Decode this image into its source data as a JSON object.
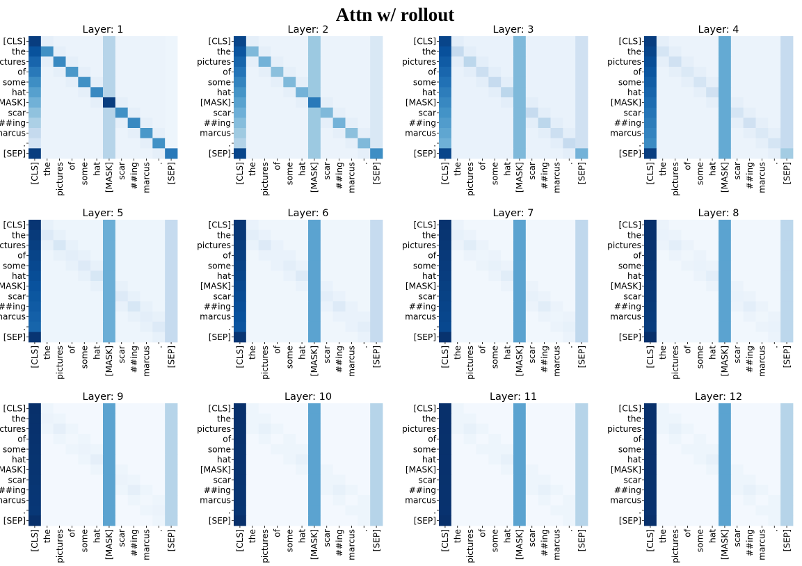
{
  "title": "Attn w/ rollout",
  "chart_data": {
    "type": "heatmap",
    "title": "Attn w/ rollout",
    "colormap": "Blues",
    "value_range": [
      0,
      1
    ],
    "tokens": [
      "[CLS]",
      "the",
      "pictures",
      "of",
      "some",
      "hat",
      "[MASK]",
      "scar",
      "##ing",
      "marcus",
      ".",
      "[SEP]"
    ],
    "panels": [
      {
        "title": "Layer: 1",
        "pattern": {
          "cls": [
            0.95,
            0.1
          ],
          "mask": 0.3,
          "sep": 0.05,
          "diag": [
            0.9,
            0.6,
            0.95
          ],
          "other": 0.06
        }
      },
      {
        "title": "Layer: 2",
        "pattern": {
          "cls": [
            0.92,
            0.25
          ],
          "mask": 0.38,
          "sep": 0.15,
          "diag": [
            0.8,
            0.42,
            0.72
          ],
          "other": 0.06
        }
      },
      {
        "title": "Layer: 3",
        "pattern": {
          "cls": [
            0.92,
            0.45
          ],
          "mask": 0.45,
          "sep": 0.2,
          "diag": [
            0.6,
            0.22,
            0.45
          ],
          "other": 0.07
        }
      },
      {
        "title": "Layer: 4",
        "pattern": {
          "cls": [
            0.95,
            0.62
          ],
          "mask": 0.52,
          "sep": 0.25,
          "diag": [
            0.45,
            0.14,
            0.3
          ],
          "other": 0.06
        }
      },
      {
        "title": "Layer: 5",
        "pattern": {
          "cls": [
            0.98,
            0.78
          ],
          "mask": 0.5,
          "sep": 0.25,
          "diag": [
            0.3,
            0.1,
            0.2
          ],
          "other": 0.05
        }
      },
      {
        "title": "Layer: 6",
        "pattern": {
          "cls": [
            0.98,
            0.85
          ],
          "mask": 0.55,
          "sep": 0.25,
          "diag": [
            0.18,
            0.07,
            0.12
          ],
          "other": 0.04
        }
      },
      {
        "title": "Layer: 7",
        "pattern": {
          "cls": [
            0.99,
            0.9
          ],
          "mask": 0.55,
          "sep": 0.27,
          "diag": [
            0.1,
            0.05,
            0.08
          ],
          "other": 0.03
        }
      },
      {
        "title": "Layer: 8",
        "pattern": {
          "cls": [
            1.0,
            0.95
          ],
          "mask": 0.55,
          "sep": 0.28,
          "diag": [
            0.06,
            0.04,
            0.06
          ],
          "other": 0.03
        }
      },
      {
        "title": "Layer: 9",
        "pattern": {
          "cls": [
            1.0,
            0.97
          ],
          "mask": 0.55,
          "sep": 0.3,
          "diag": [
            0.04,
            0.03,
            0.04
          ],
          "other": 0.02
        }
      },
      {
        "title": "Layer: 10",
        "pattern": {
          "cls": [
            1.0,
            0.98
          ],
          "mask": 0.55,
          "sep": 0.3,
          "diag": [
            0.03,
            0.02,
            0.03
          ],
          "other": 0.02
        }
      },
      {
        "title": "Layer: 11",
        "pattern": {
          "cls": [
            1.0,
            0.99
          ],
          "mask": 0.55,
          "sep": 0.3,
          "diag": [
            0.02,
            0.02,
            0.02
          ],
          "other": 0.02
        }
      },
      {
        "title": "Layer: 12",
        "pattern": {
          "cls": [
            1.0,
            0.99
          ],
          "mask": 0.55,
          "sep": 0.3,
          "diag": [
            0.02,
            0.02,
            0.02
          ],
          "other": 0.02
        }
      }
    ]
  }
}
